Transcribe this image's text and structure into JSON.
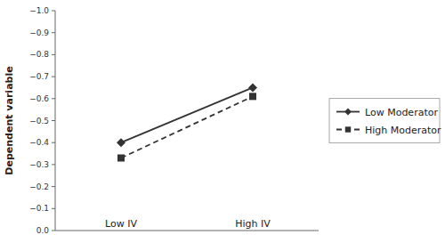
{
  "chart_data": {
    "type": "line",
    "y_label": "Dependent variable",
    "categories": [
      "Low IV",
      "High IV"
    ],
    "series": [
      {
        "name": "Low Moderator",
        "color": "#333333",
        "marker": "diamond",
        "line_style": "solid",
        "values": [
          -0.4,
          -0.65
        ]
      },
      {
        "name": "High Moderator",
        "color": "#333333",
        "marker": "square",
        "line_style": "dashed",
        "values": [
          -0.33,
          -0.61
        ]
      }
    ],
    "ylim": [
      0,
      -1
    ],
    "yticks": [
      {
        "value": 0,
        "label": "0.0"
      },
      {
        "value": -0.1,
        "label": "−0.1"
      },
      {
        "value": -0.2,
        "label": "−0.2"
      },
      {
        "value": -0.3,
        "label": "−0.3"
      },
      {
        "value": -0.4,
        "label": "−0.4"
      },
      {
        "value": -0.5,
        "label": "−0.5"
      },
      {
        "value": -0.6,
        "label": "−0.6"
      },
      {
        "value": -0.7,
        "label": "−0.7"
      },
      {
        "value": -0.8,
        "label": "−0.8"
      },
      {
        "value": -0.9,
        "label": "−0.9"
      },
      {
        "value": -1,
        "label": "−1.0"
      }
    ],
    "legend": "right"
  }
}
